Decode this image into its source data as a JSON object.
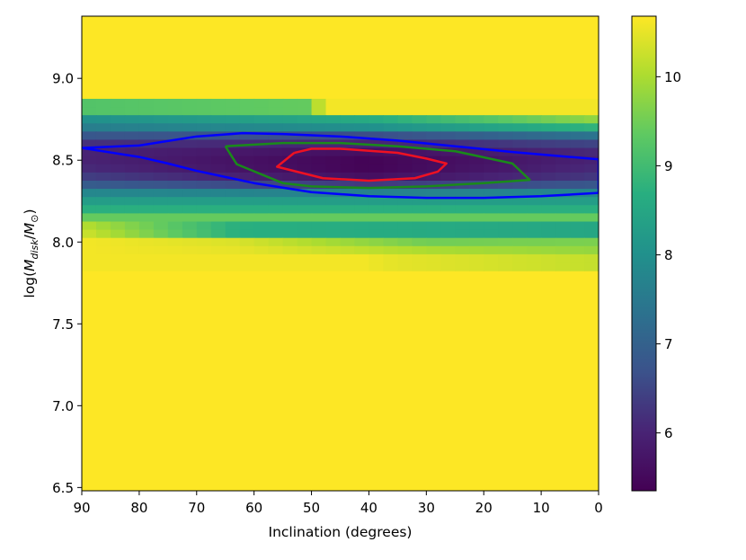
{
  "chart_data": {
    "type": "heatmap",
    "title": "",
    "xlabel": "Inclination (degrees)",
    "ylabel_parts": {
      "prefix": "log(",
      "M1": "M",
      "sub1": "disk",
      "slash": "/",
      "M2": "M",
      "sub2": "⊙",
      "suffix": ")"
    },
    "x_axis": {
      "range": [
        90,
        0
      ],
      "inverted": true,
      "ticks": [
        90,
        80,
        70,
        60,
        50,
        40,
        30,
        20,
        10,
        0
      ],
      "tick_labels": [
        "90",
        "80",
        "70",
        "60",
        "50",
        "40",
        "30",
        "20",
        "10",
        "0"
      ]
    },
    "y_axis": {
      "range": [
        6.48,
        9.38
      ],
      "ticks": [
        6.5,
        7.0,
        7.5,
        8.0,
        8.5,
        9.0
      ],
      "tick_labels": [
        "6.5",
        "7.0",
        "7.5",
        "8.0",
        "8.5",
        "9.0"
      ]
    },
    "colorbar": {
      "range": [
        5.35,
        10.68
      ],
      "colormap": "viridis",
      "ticks": [
        6,
        7,
        8,
        9,
        10
      ],
      "tick_labels": [
        "6",
        "7",
        "8",
        "9",
        "10"
      ]
    },
    "heatmap": {
      "x_cell_width_deg": 2.5,
      "y_cell_height": 0.05,
      "background_value": 10.6,
      "rows": [
        {
          "y_center": 8.85,
          "values_by_x": [
            [
              90,
              9.2
            ],
            [
              50,
              9.4
            ],
            [
              48,
              10.6
            ]
          ]
        },
        {
          "y_center": 8.8,
          "values_by_x": [
            [
              90,
              9.2
            ],
            [
              50,
              9.4
            ],
            [
              48,
              10.6
            ]
          ]
        },
        {
          "y_center": 8.75,
          "values_by_x": [
            [
              90,
              8.0
            ],
            [
              40,
              8.6
            ],
            [
              0,
              9.8
            ]
          ]
        },
        {
          "y_center": 8.7,
          "values_by_x": [
            [
              90,
              7.6
            ],
            [
              40,
              8.0
            ],
            [
              0,
              8.8
            ]
          ]
        },
        {
          "y_center": 8.65,
          "values_by_x": [
            [
              90,
              6.8
            ],
            [
              40,
              6.6
            ],
            [
              0,
              7.4
            ]
          ]
        },
        {
          "y_center": 8.6,
          "values_by_x": [
            [
              90,
              6.2
            ],
            [
              40,
              6.0
            ],
            [
              0,
              6.5
            ]
          ]
        },
        {
          "y_center": 8.55,
          "values_by_x": [
            [
              90,
              6.0
            ],
            [
              40,
              5.6
            ],
            [
              0,
              6.1
            ]
          ]
        },
        {
          "y_center": 8.5,
          "values_by_x": [
            [
              90,
              6.0
            ],
            [
              40,
              5.4
            ],
            [
              0,
              6.0
            ]
          ]
        },
        {
          "y_center": 8.45,
          "values_by_x": [
            [
              90,
              6.1
            ],
            [
              40,
              5.4
            ],
            [
              0,
              6.1
            ]
          ]
        },
        {
          "y_center": 8.4,
          "values_by_x": [
            [
              90,
              6.4
            ],
            [
              40,
              5.6
            ],
            [
              0,
              6.3
            ]
          ]
        },
        {
          "y_center": 8.35,
          "values_by_x": [
            [
              90,
              6.9
            ],
            [
              40,
              6.3
            ],
            [
              0,
              6.8
            ]
          ]
        },
        {
          "y_center": 8.3,
          "values_by_x": [
            [
              90,
              7.8
            ],
            [
              40,
              7.7
            ],
            [
              0,
              7.8
            ]
          ]
        },
        {
          "y_center": 8.25,
          "values_by_x": [
            [
              90,
              8.3
            ],
            [
              40,
              8.3
            ],
            [
              0,
              8.3
            ]
          ]
        },
        {
          "y_center": 8.2,
          "values_by_x": [
            [
              90,
              8.7
            ],
            [
              40,
              8.7
            ],
            [
              0,
              8.7
            ]
          ]
        },
        {
          "y_center": 8.15,
          "values_by_x": [
            [
              90,
              9.4
            ],
            [
              40,
              9.4
            ],
            [
              0,
              9.4
            ]
          ]
        },
        {
          "y_center": 8.1,
          "values_by_x": [
            [
              90,
              10.1
            ],
            [
              63,
              8.7
            ],
            [
              0,
              8.5
            ]
          ]
        },
        {
          "y_center": 8.05,
          "values_by_x": [
            [
              90,
              10.3
            ],
            [
              63,
              8.7
            ],
            [
              0,
              8.5
            ]
          ]
        },
        {
          "y_center": 8.0,
          "values_by_x": [
            [
              90,
              10.6
            ],
            [
              64,
              10.4
            ],
            [
              30,
              9.5
            ],
            [
              0,
              9.6
            ]
          ]
        },
        {
          "y_center": 7.95,
          "values_by_x": [
            [
              90,
              10.6
            ],
            [
              64,
              10.5
            ],
            [
              30,
              10.0
            ],
            [
              0,
              9.8
            ]
          ]
        },
        {
          "y_center": 7.9,
          "values_by_x": [
            [
              90,
              10.6
            ],
            [
              40,
              10.6
            ],
            [
              38,
              10.5
            ],
            [
              0,
              10.2
            ]
          ]
        },
        {
          "y_center": 7.85,
          "values_by_x": [
            [
              90,
              10.6
            ],
            [
              40,
              10.6
            ],
            [
              38,
              10.5
            ],
            [
              0,
              10.2
            ]
          ]
        }
      ]
    },
    "contours": [
      {
        "color": "#0000ff",
        "points": [
          [
            90,
            8.575
          ],
          [
            80,
            8.59
          ],
          [
            70,
            8.645
          ],
          [
            62,
            8.665
          ],
          [
            55,
            8.66
          ],
          [
            45,
            8.645
          ],
          [
            35,
            8.62
          ],
          [
            25,
            8.585
          ],
          [
            15,
            8.55
          ],
          [
            5,
            8.52
          ],
          [
            0,
            8.505
          ],
          [
            0,
            8.3
          ],
          [
            5,
            8.29
          ],
          [
            10,
            8.28
          ],
          [
            20,
            8.27
          ],
          [
            30,
            8.27
          ],
          [
            40,
            8.28
          ],
          [
            50,
            8.305
          ],
          [
            60,
            8.36
          ],
          [
            70,
            8.435
          ],
          [
            75,
            8.48
          ],
          [
            80,
            8.52
          ],
          [
            90,
            8.575
          ]
        ]
      },
      {
        "color": "#1a8a1a",
        "points": [
          [
            65,
            8.585
          ],
          [
            55,
            8.605
          ],
          [
            45,
            8.605
          ],
          [
            35,
            8.585
          ],
          [
            25,
            8.555
          ],
          [
            15,
            8.48
          ],
          [
            12,
            8.38
          ],
          [
            20,
            8.36
          ],
          [
            30,
            8.34
          ],
          [
            40,
            8.33
          ],
          [
            50,
            8.34
          ],
          [
            55,
            8.36
          ],
          [
            63,
            8.475
          ],
          [
            65,
            8.585
          ]
        ]
      },
      {
        "color": "#ee1122",
        "points": [
          [
            53,
            8.545
          ],
          [
            50,
            8.57
          ],
          [
            45,
            8.57
          ],
          [
            35,
            8.545
          ],
          [
            30,
            8.51
          ],
          [
            26.5,
            8.48
          ],
          [
            28,
            8.43
          ],
          [
            32,
            8.39
          ],
          [
            40,
            8.375
          ],
          [
            48,
            8.39
          ],
          [
            56,
            8.46
          ],
          [
            53,
            8.545
          ]
        ]
      }
    ]
  }
}
